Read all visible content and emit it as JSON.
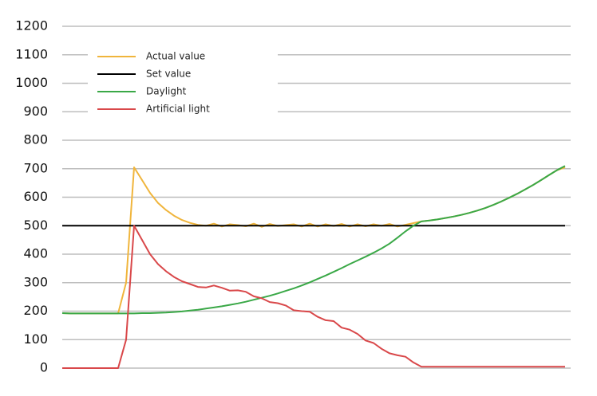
{
  "chart_data": {
    "type": "line",
    "categories": [
      null,
      null,
      null,
      null,
      null,
      null,
      null,
      null,
      null,
      null,
      null,
      null,
      null,
      null,
      null,
      null,
      null,
      null,
      null,
      null,
      null,
      null,
      null,
      null,
      null,
      null,
      null,
      null,
      null,
      null,
      null,
      null,
      null,
      null,
      null,
      null,
      null,
      null,
      null,
      null,
      null,
      null,
      null,
      null,
      null,
      null,
      null,
      null,
      null,
      null,
      null,
      null,
      null,
      null,
      null,
      null,
      null,
      null,
      null,
      null,
      null,
      null,
      null,
      null
    ],
    "ylim": [
      0,
      1200
    ],
    "yticks": [
      0,
      100,
      200,
      300,
      400,
      500,
      600,
      700,
      800,
      900,
      1000,
      1100,
      1200
    ],
    "grid": true,
    "legend": "upper left",
    "series": [
      {
        "name": "Actual value",
        "color": "#f0b53c",
        "values": [
          193,
          192,
          192,
          192,
          192,
          192,
          192,
          192,
          300,
          705,
          660,
          615,
          580,
          555,
          535,
          520,
          510,
          503,
          500,
          507,
          497,
          505,
          502,
          498,
          507,
          496,
          506,
          499,
          502,
          505,
          497,
          507,
          497,
          505,
          499,
          506,
          497,
          505,
          498,
          505,
          500,
          506,
          497,
          503,
          509,
          515,
          518,
          522,
          527,
          532,
          538,
          545,
          553,
          562,
          573,
          585,
          598,
          612,
          627,
          643,
          660,
          678,
          695,
          705
        ]
      },
      {
        "name": "Set value",
        "color": "#000000",
        "values": [
          500,
          500,
          500,
          500,
          500,
          500,
          500,
          500,
          500,
          500,
          500,
          500,
          500,
          500,
          500,
          500,
          500,
          500,
          500,
          500,
          500,
          500,
          500,
          500,
          500,
          500,
          500,
          500,
          500,
          500,
          500,
          500,
          500,
          500,
          500,
          500,
          500,
          500,
          500,
          500,
          500,
          500,
          500,
          500,
          500,
          500,
          500,
          500,
          500,
          500,
          500,
          500,
          500,
          500,
          500,
          500,
          500,
          500,
          500,
          500,
          500,
          500,
          500,
          500
        ]
      },
      {
        "name": "Daylight",
        "color": "#3aa847",
        "values": [
          193,
          192,
          192,
          192,
          192,
          192,
          192,
          192,
          192,
          192,
          193,
          193,
          194,
          195,
          197,
          199,
          202,
          205,
          209,
          213,
          217,
          222,
          227,
          233,
          240,
          247,
          254,
          262,
          271,
          280,
          290,
          301,
          313,
          325,
          338,
          351,
          365,
          378,
          391,
          405,
          420,
          437,
          458,
          480,
          500,
          515,
          518,
          522,
          527,
          532,
          538,
          545,
          553,
          562,
          573,
          585,
          598,
          612,
          627,
          643,
          660,
          678,
          695,
          710
        ]
      },
      {
        "name": "Artificial light",
        "color": "#d9484a",
        "values": [
          0,
          0,
          0,
          0,
          0,
          0,
          0,
          0,
          100,
          500,
          450,
          400,
          365,
          340,
          320,
          305,
          295,
          285,
          283,
          290,
          282,
          272,
          273,
          268,
          252,
          245,
          232,
          228,
          220,
          203,
          200,
          198,
          180,
          168,
          165,
          142,
          135,
          120,
          97,
          88,
          68,
          52,
          45,
          40,
          20,
          5,
          5,
          5,
          5,
          5,
          5,
          5,
          5,
          5,
          5,
          5,
          5,
          5,
          5,
          5,
          5,
          5,
          5,
          5
        ]
      }
    ]
  }
}
